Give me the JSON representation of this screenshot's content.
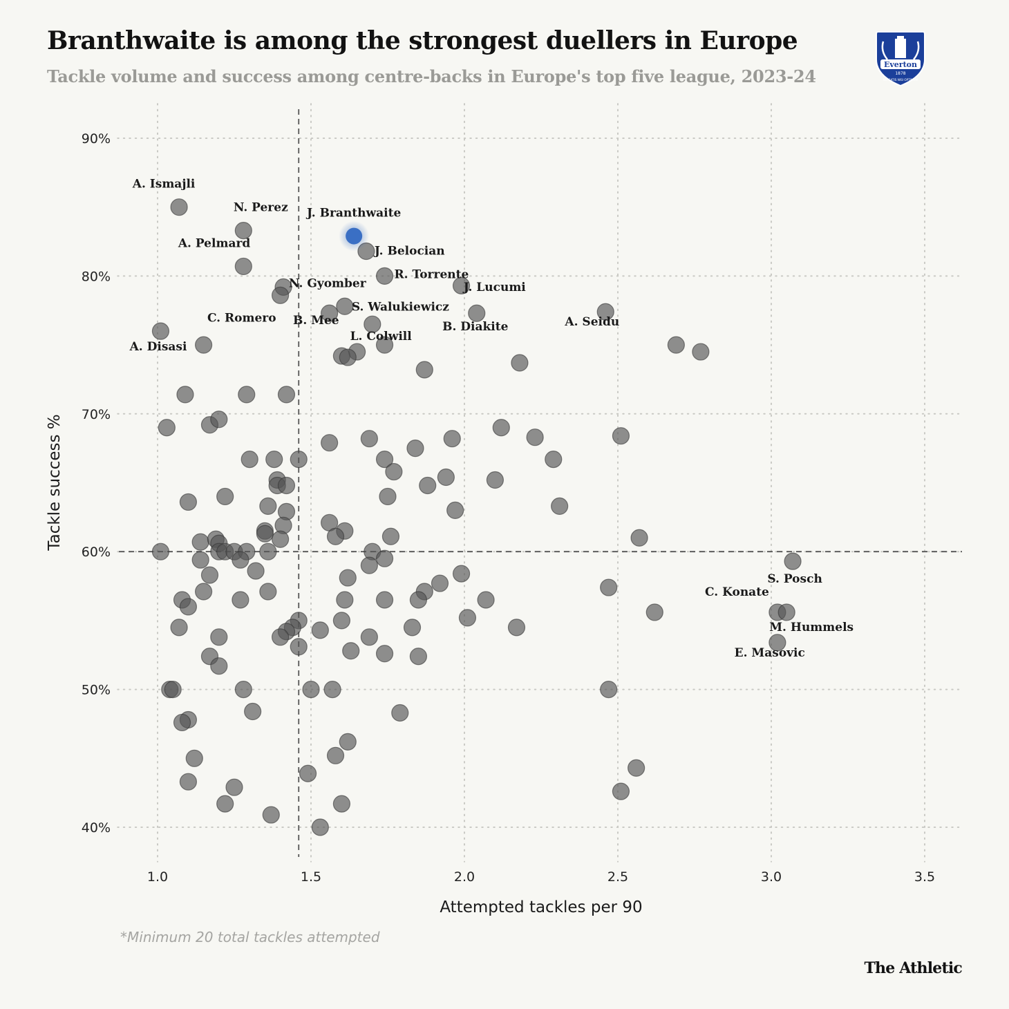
{
  "header": {
    "title": "Branthwaite is among the strongest duellers in Europe",
    "subtitle": "Tackle volume and success among centre-backs in Europe's top five league, 2023-24"
  },
  "crest": {
    "name": "Everton",
    "year": "1878",
    "motto": "NIL SATIS NISI OPTIMUM",
    "color": "#1b3f9a"
  },
  "footer": {
    "footnote": "*Minimum 20 total tackles attempted",
    "brand": "The Athletic"
  },
  "colors": {
    "point": "#555555",
    "highlight": "#3a6fc4",
    "background": "#f7f7f3"
  },
  "chart_data": {
    "type": "scatter",
    "title": "Branthwaite is among the strongest duellers in Europe",
    "subtitle": "Tackle volume and success among centre-backs in Europe's top five league, 2023-24",
    "xlabel": "Attempted tackles per 90",
    "ylabel": "Tackle success %",
    "xlim": [
      0.87,
      3.62
    ],
    "ylim": [
      37.5,
      92.5
    ],
    "xticks": [
      1.0,
      1.5,
      2.0,
      2.5,
      3.0,
      3.5
    ],
    "xtick_labels": [
      "1.0",
      "1.5",
      "2.0",
      "2.5",
      "3.0",
      "3.5"
    ],
    "yticks": [
      40,
      50,
      60,
      70,
      80,
      90
    ],
    "ytick_labels": [
      "40%",
      "50%",
      "60%",
      "70%",
      "80%",
      "90%"
    ],
    "grid": true,
    "reference_lines": {
      "x_average": 1.46,
      "y_average": 60
    },
    "highlight": {
      "name": "J. Branthwaite",
      "x": 1.64,
      "y": 82.9
    },
    "labeled_points": [
      {
        "name": "A. Ismajli",
        "x": 1.07,
        "y": 85.0,
        "anchor": "above"
      },
      {
        "name": "N. Perez",
        "x": 1.28,
        "y": 83.3,
        "anchor": "above"
      },
      {
        "name": "J. Branthwaite",
        "x": 1.64,
        "y": 82.9,
        "anchor": "above"
      },
      {
        "name": "A. Pelmard",
        "x": 1.28,
        "y": 80.7,
        "anchor": "above-left"
      },
      {
        "name": "J. Belocian",
        "x": 1.68,
        "y": 81.8,
        "anchor": "right"
      },
      {
        "name": "N. Gyomber",
        "x": 1.41,
        "y": 79.2,
        "anchor": "right"
      },
      {
        "name": "R. Torrente",
        "x": 1.74,
        "y": 80.0,
        "anchor": "right"
      },
      {
        "name": "C. Romero",
        "x": 1.4,
        "y": 78.6,
        "anchor": "below-left"
      },
      {
        "name": "S. Walukiewicz",
        "x": 1.61,
        "y": 77.8,
        "anchor": "right"
      },
      {
        "name": "J. Lucumi",
        "x": 2.04,
        "y": 77.3,
        "anchor": "above"
      },
      {
        "name": "A. Disasi",
        "x": 1.01,
        "y": 76.0,
        "anchor": "below-left"
      },
      {
        "name": "B. Mee",
        "x": 1.56,
        "y": 77.3,
        "anchor": "below-left"
      },
      {
        "name": "B. Diakite",
        "x": 2.04,
        "y": 77.3,
        "anchor": "below"
      },
      {
        "name": "A. Seidu",
        "x": 2.46,
        "y": 77.4,
        "anchor": "below-left"
      },
      {
        "name": "L. Colwill",
        "x": 1.65,
        "y": 74.5,
        "anchor": "above-right"
      },
      {
        "name": "S. Posch",
        "x": 3.07,
        "y": 59.3,
        "anchor": "below"
      },
      {
        "name": "C. Konate",
        "x": 3.02,
        "y": 55.6,
        "anchor": "above-left"
      },
      {
        "name": "M. Hummels",
        "x": 3.05,
        "y": 55.6,
        "anchor": "below"
      },
      {
        "name": "E. Masovic",
        "x": 3.02,
        "y": 53.4,
        "anchor": "below-left"
      }
    ],
    "points": [
      [
        1.07,
        85.0
      ],
      [
        1.28,
        83.3
      ],
      [
        1.28,
        80.7
      ],
      [
        1.68,
        81.8
      ],
      [
        1.41,
        79.2
      ],
      [
        1.4,
        78.6
      ],
      [
        1.74,
        80.0
      ],
      [
        1.99,
        79.3
      ],
      [
        1.61,
        77.8
      ],
      [
        1.56,
        77.3
      ],
      [
        2.04,
        77.3
      ],
      [
        2.46,
        77.4
      ],
      [
        1.01,
        76.0
      ],
      [
        1.15,
        75.0
      ],
      [
        1.7,
        76.5
      ],
      [
        1.74,
        75.0
      ],
      [
        1.65,
        74.5
      ],
      [
        1.6,
        74.2
      ],
      [
        1.62,
        74.1
      ],
      [
        2.69,
        75.0
      ],
      [
        2.77,
        74.5
      ],
      [
        2.18,
        73.7
      ],
      [
        1.87,
        73.2
      ],
      [
        1.09,
        71.4
      ],
      [
        1.29,
        71.4
      ],
      [
        1.42,
        71.4
      ],
      [
        1.03,
        69.0
      ],
      [
        1.17,
        69.2
      ],
      [
        1.2,
        69.6
      ],
      [
        1.56,
        67.9
      ],
      [
        1.69,
        68.2
      ],
      [
        1.84,
        67.5
      ],
      [
        1.96,
        68.2
      ],
      [
        2.12,
        69.0
      ],
      [
        2.23,
        68.3
      ],
      [
        2.51,
        68.4
      ],
      [
        1.3,
        66.7
      ],
      [
        1.38,
        66.7
      ],
      [
        1.46,
        66.7
      ],
      [
        1.74,
        66.7
      ],
      [
        1.77,
        65.8
      ],
      [
        2.29,
        66.7
      ],
      [
        1.39,
        65.2
      ],
      [
        1.39,
        64.8
      ],
      [
        1.42,
        64.8
      ],
      [
        1.88,
        64.8
      ],
      [
        1.94,
        65.4
      ],
      [
        2.1,
        65.2
      ],
      [
        1.1,
        63.6
      ],
      [
        1.22,
        64.0
      ],
      [
        1.75,
        64.0
      ],
      [
        1.36,
        63.3
      ],
      [
        1.42,
        62.9
      ],
      [
        1.97,
        63.0
      ],
      [
        2.31,
        63.3
      ],
      [
        1.56,
        62.1
      ],
      [
        1.61,
        61.5
      ],
      [
        1.41,
        61.9
      ],
      [
        1.35,
        61.5
      ],
      [
        1.35,
        61.3
      ],
      [
        1.58,
        61.1
      ],
      [
        1.76,
        61.1
      ],
      [
        2.57,
        61.0
      ],
      [
        1.14,
        60.7
      ],
      [
        1.19,
        60.9
      ],
      [
        1.2,
        60.6
      ],
      [
        1.4,
        60.9
      ],
      [
        1.01,
        60.0
      ],
      [
        1.2,
        60.0
      ],
      [
        1.22,
        60.0
      ],
      [
        1.25,
        60.0
      ],
      [
        1.29,
        60.0
      ],
      [
        1.36,
        60.0
      ],
      [
        1.7,
        60.0
      ],
      [
        1.14,
        59.4
      ],
      [
        1.27,
        59.4
      ],
      [
        1.74,
        59.5
      ],
      [
        1.69,
        59.0
      ],
      [
        3.07,
        59.3
      ],
      [
        1.32,
        58.6
      ],
      [
        1.17,
        58.3
      ],
      [
        1.62,
        58.1
      ],
      [
        1.99,
        58.4
      ],
      [
        1.15,
        57.1
      ],
      [
        1.36,
        57.1
      ],
      [
        1.87,
        57.1
      ],
      [
        1.92,
        57.7
      ],
      [
        2.47,
        57.4
      ],
      [
        1.08,
        56.5
      ],
      [
        1.1,
        56.0
      ],
      [
        1.27,
        56.5
      ],
      [
        1.61,
        56.5
      ],
      [
        1.74,
        56.5
      ],
      [
        1.85,
        56.5
      ],
      [
        2.07,
        56.5
      ],
      [
        2.01,
        55.2
      ],
      [
        2.62,
        55.6
      ],
      [
        3.02,
        55.6
      ],
      [
        3.05,
        55.6
      ],
      [
        1.46,
        55.0
      ],
      [
        1.6,
        55.0
      ],
      [
        1.07,
        54.5
      ],
      [
        1.44,
        54.5
      ],
      [
        1.53,
        54.3
      ],
      [
        1.83,
        54.5
      ],
      [
        2.17,
        54.5
      ],
      [
        1.42,
        54.2
      ],
      [
        1.4,
        53.8
      ],
      [
        1.2,
        53.8
      ],
      [
        1.69,
        53.8
      ],
      [
        3.02,
        53.4
      ],
      [
        1.46,
        53.1
      ],
      [
        1.63,
        52.8
      ],
      [
        1.74,
        52.6
      ],
      [
        1.17,
        52.4
      ],
      [
        1.85,
        52.4
      ],
      [
        1.2,
        51.7
      ],
      [
        1.04,
        50.0
      ],
      [
        1.05,
        50.0
      ],
      [
        1.28,
        50.0
      ],
      [
        1.5,
        50.0
      ],
      [
        1.57,
        50.0
      ],
      [
        2.47,
        50.0
      ],
      [
        1.31,
        48.4
      ],
      [
        1.79,
        48.3
      ],
      [
        1.1,
        47.8
      ],
      [
        1.08,
        47.6
      ],
      [
        1.62,
        46.2
      ],
      [
        1.58,
        45.2
      ],
      [
        1.12,
        45.0
      ],
      [
        2.56,
        44.3
      ],
      [
        1.49,
        43.9
      ],
      [
        1.1,
        43.3
      ],
      [
        1.25,
        42.9
      ],
      [
        2.51,
        42.6
      ],
      [
        1.22,
        41.7
      ],
      [
        1.6,
        41.7
      ],
      [
        1.37,
        40.9
      ],
      [
        1.53,
        40.0
      ]
    ]
  }
}
